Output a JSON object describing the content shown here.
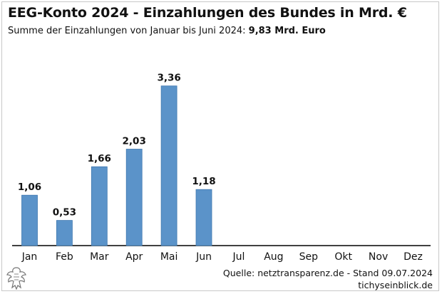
{
  "header": {
    "title": "EEG-Konto 2024 - Einzahlungen des Bundes in Mrd. €",
    "subtitle_prefix": "Summe der Einzahlungen von Januar bis Juni 2024: ",
    "subtitle_total": "9,83 Mrd. Euro"
  },
  "footer": {
    "source": "Quelle: netztransparenz.de - Stand 09.07.2024",
    "credit": "tichyseinblick.de",
    "logo_icon": "eagle-logo-icon"
  },
  "colors": {
    "bar": "#5b93c9",
    "bar_edge": "#3f78b0",
    "axis": "#000000"
  },
  "chart_data": {
    "type": "bar",
    "categories": [
      "Jan",
      "Feb",
      "Mar",
      "Apr",
      "Mai",
      "Jun",
      "Jul",
      "Aug",
      "Sep",
      "Okt",
      "Nov",
      "Dez"
    ],
    "values": [
      1.06,
      0.53,
      1.66,
      2.03,
      3.36,
      1.18,
      null,
      null,
      null,
      null,
      null,
      null
    ],
    "data_labels": [
      "1,06",
      "0,53",
      "1,66",
      "2,03",
      "3,36",
      "1,18",
      "",
      "",
      "",
      "",
      "",
      ""
    ],
    "title": "EEG-Konto 2024 - Einzahlungen des Bundes in Mrd. €",
    "xlabel": "",
    "ylabel": "",
    "ylim": [
      0,
      3.4
    ],
    "grid": false,
    "legend": "none"
  }
}
